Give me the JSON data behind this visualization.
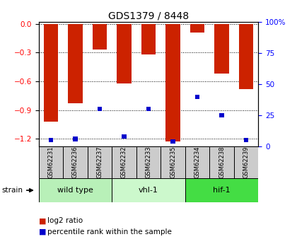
{
  "title": "GDS1379 / 8448",
  "samples": [
    "GSM62231",
    "GSM62236",
    "GSM62237",
    "GSM62232",
    "GSM62233",
    "GSM62235",
    "GSM62234",
    "GSM62238",
    "GSM62239"
  ],
  "log2_ratio": [
    -1.02,
    -0.83,
    -0.27,
    -0.62,
    -0.32,
    -1.23,
    -0.09,
    -0.52,
    -0.68
  ],
  "percentile_rank": [
    5,
    6,
    30,
    8,
    30,
    4,
    40,
    25,
    5
  ],
  "groups": [
    {
      "label": "wild type",
      "indices": [
        0,
        1,
        2
      ],
      "color": "#b8f0b8"
    },
    {
      "label": "vhl-1",
      "indices": [
        3,
        4,
        5
      ],
      "color": "#ccf8cc"
    },
    {
      "label": "hif-1",
      "indices": [
        6,
        7,
        8
      ],
      "color": "#44dd44"
    }
  ],
  "ylim_left": [
    -1.28,
    0.02
  ],
  "ylim_right": [
    0,
    100
  ],
  "yticks_left": [
    0,
    -0.3,
    -0.6,
    -0.9,
    -1.2
  ],
  "yticks_right": [
    0,
    25,
    50,
    75,
    100
  ],
  "bar_color": "#cc2200",
  "pct_color": "#0000cc",
  "bar_width": 0.6,
  "pct_bar_width": 0.18,
  "pct_bar_height": 0.035,
  "grid_color": "#000000",
  "bg_color": "#ffffff",
  "sample_bg_color": "#cccccc",
  "strain_label": "strain",
  "legend_red": "log2 ratio",
  "legend_blue": "percentile rank within the sample"
}
